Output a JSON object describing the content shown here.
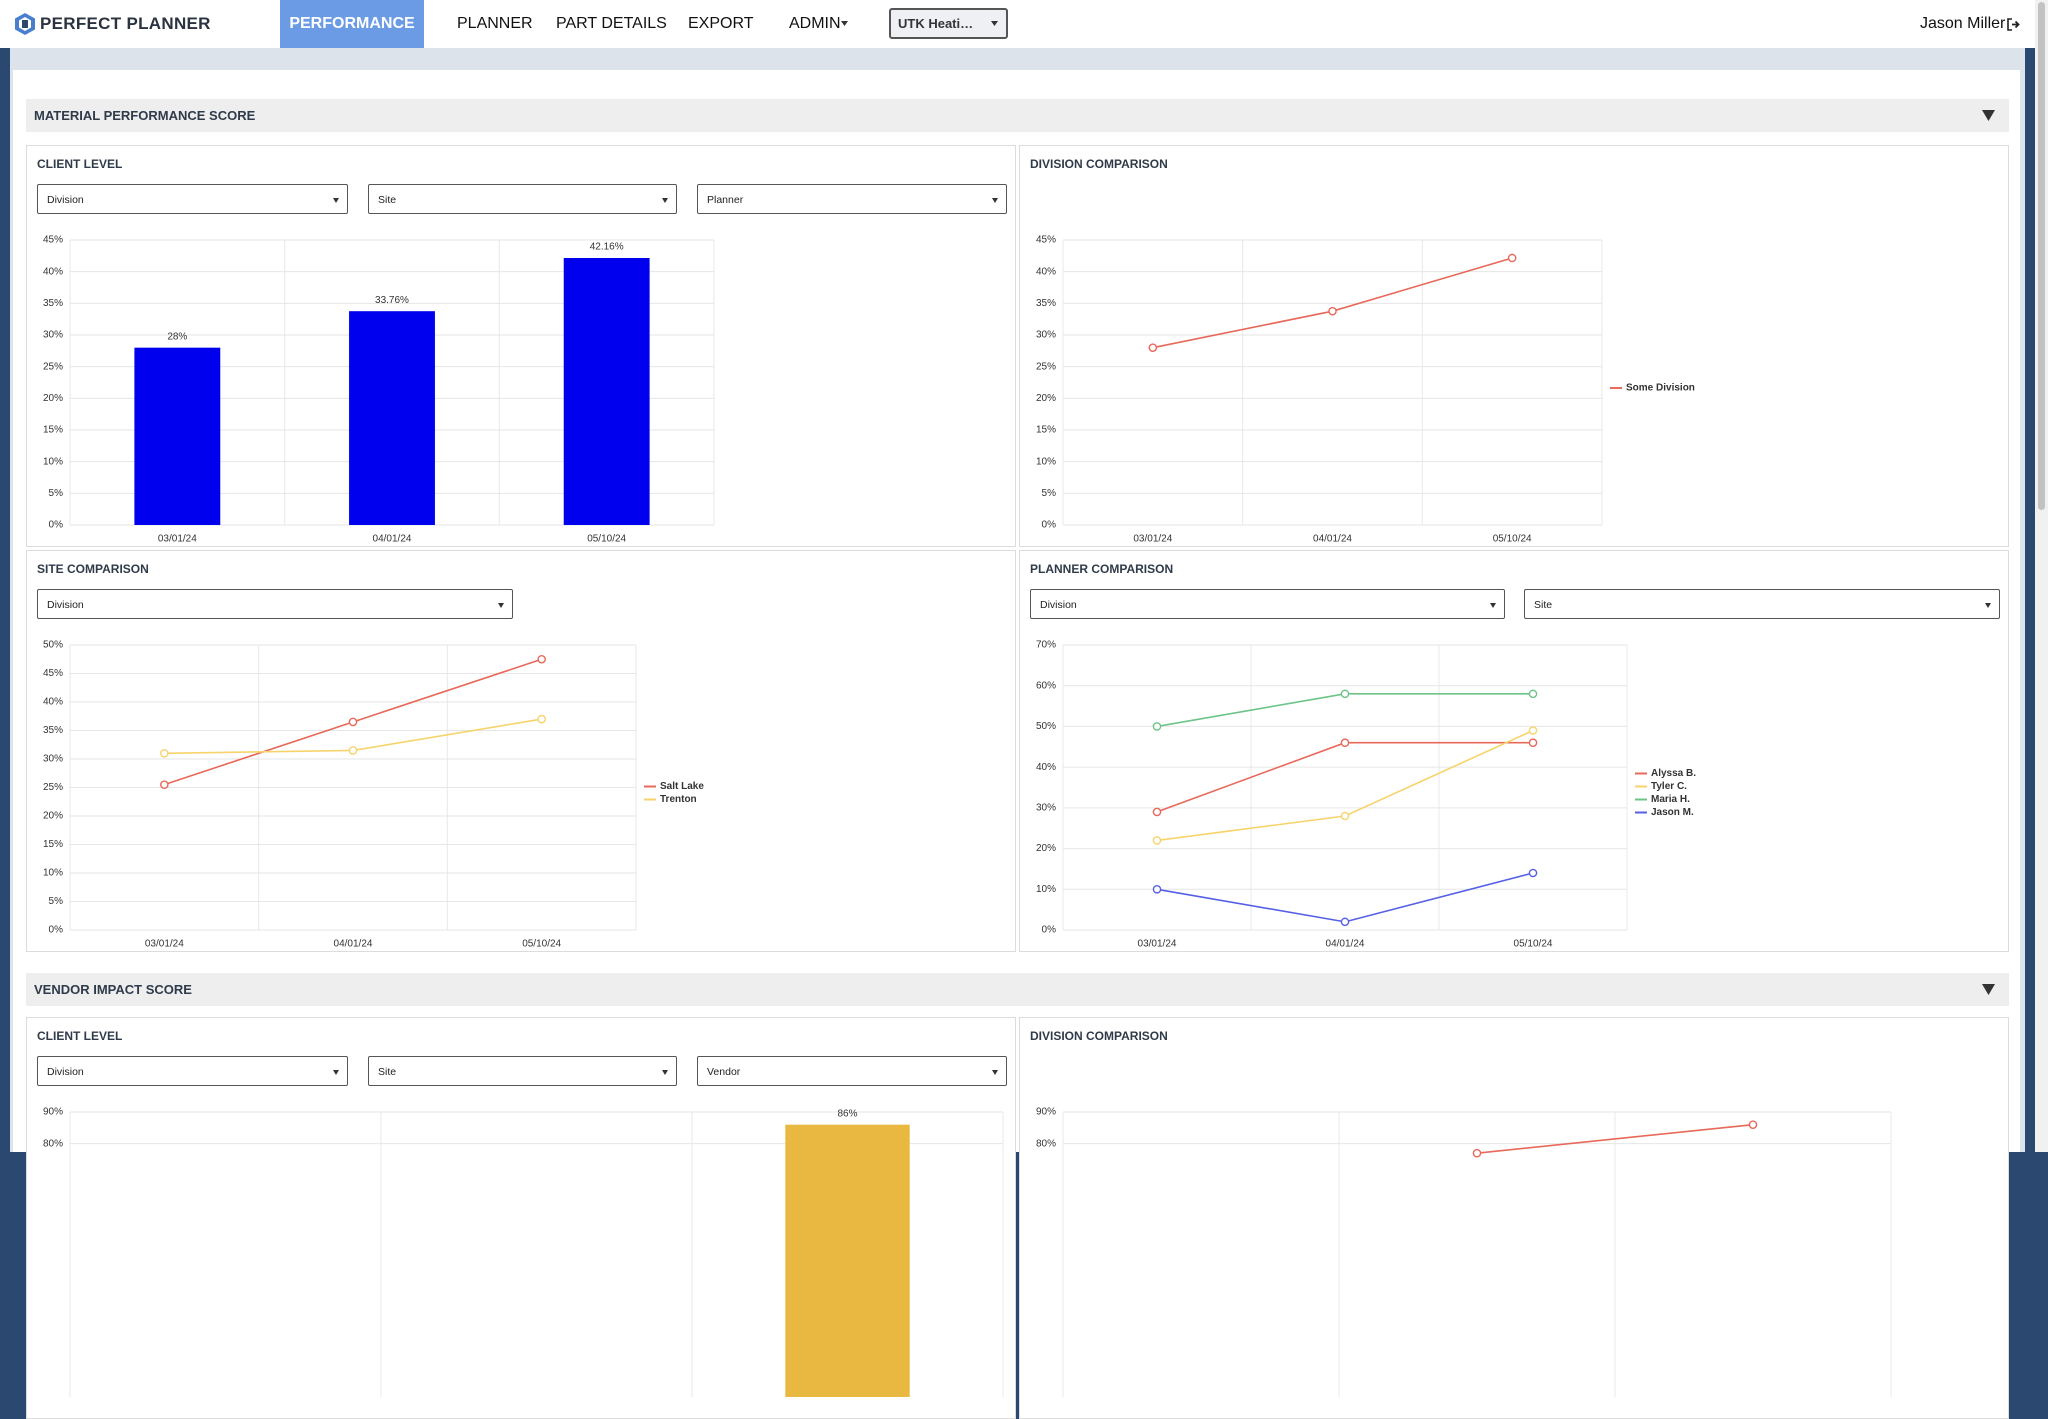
{
  "nav": {
    "brand": "PERFECT PLANNER",
    "items": [
      "PERFORMANCE",
      "PLANNER",
      "PART DETAILS",
      "EXPORT",
      "ADMIN"
    ],
    "client_select": "UTK Heati…",
    "user": "Jason Miller"
  },
  "sections": [
    {
      "title": "MATERIAL PERFORMANCE SCORE",
      "panels": [
        {
          "title": "CLIENT LEVEL",
          "filters": [
            "Division",
            "Site",
            "Planner"
          ],
          "chart": {
            "type": "bar",
            "categories": [
              "03/01/24",
              "04/01/24",
              "05/10/24"
            ],
            "values": [
              28,
              33.76,
              42.16
            ],
            "value_labels": [
              "28%",
              "33.76%",
              "42.16%"
            ],
            "color": "#0000ee",
            "ylim": [
              0,
              45
            ],
            "yticks": [
              {
                "value": 0,
                "label": "0%"
              },
              {
                "value": 5,
                "label": "5%"
              },
              {
                "value": 10,
                "label": "10%"
              },
              {
                "value": 15,
                "label": "15%"
              },
              {
                "value": 20,
                "label": "20%"
              },
              {
                "value": 25,
                "label": "25%"
              },
              {
                "value": 30,
                "label": "30%"
              },
              {
                "value": 35,
                "label": "35%"
              },
              {
                "value": 40,
                "label": "40%"
              },
              {
                "value": 45,
                "label": "45%"
              }
            ],
            "grid": true
          }
        },
        {
          "title": "DIVISION COMPARISON",
          "filters": [],
          "chart": {
            "type": "line",
            "categories": [
              "03/01/24",
              "04/01/24",
              "05/10/24"
            ],
            "series": [
              {
                "name": "Some Division",
                "color": "#e8685a",
                "values": [
                  28,
                  33.76,
                  42.16
                ]
              }
            ],
            "ylim": [
              0,
              45
            ],
            "yticks": [
              {
                "value": 0,
                "label": "0%"
              },
              {
                "value": 5,
                "label": "5%"
              },
              {
                "value": 10,
                "label": "10%"
              },
              {
                "value": 15,
                "label": "15%"
              },
              {
                "value": 20,
                "label": "20%"
              },
              {
                "value": 25,
                "label": "25%"
              },
              {
                "value": 30,
                "label": "30%"
              },
              {
                "value": 35,
                "label": "35%"
              },
              {
                "value": 40,
                "label": "40%"
              },
              {
                "value": 45,
                "label": "45%"
              }
            ],
            "grid": true,
            "legend": "right"
          }
        },
        {
          "title": "SITE COMPARISON",
          "filters": [
            "Division"
          ],
          "chart": {
            "type": "line",
            "categories": [
              "03/01/24",
              "04/01/24",
              "05/10/24"
            ],
            "series": [
              {
                "name": "Salt Lake",
                "color": "#e8685a",
                "values": [
                  25.5,
                  36.5,
                  47.5
                ]
              },
              {
                "name": "Trenton",
                "color": "#f7d36b",
                "values": [
                  31,
                  31.5,
                  37
                ]
              }
            ],
            "ylim": [
              0,
              50
            ],
            "yticks": [
              {
                "value": 0,
                "label": "0%"
              },
              {
                "value": 5,
                "label": "5%"
              },
              {
                "value": 10,
                "label": "10%"
              },
              {
                "value": 15,
                "label": "15%"
              },
              {
                "value": 20,
                "label": "20%"
              },
              {
                "value": 25,
                "label": "25%"
              },
              {
                "value": 30,
                "label": "30%"
              },
              {
                "value": 35,
                "label": "35%"
              },
              {
                "value": 40,
                "label": "40%"
              },
              {
                "value": 45,
                "label": "45%"
              },
              {
                "value": 50,
                "label": "50%"
              }
            ],
            "grid": true,
            "legend": "right"
          }
        },
        {
          "title": "PLANNER COMPARISON",
          "filters": [
            "Division",
            "Site"
          ],
          "chart": {
            "type": "line",
            "categories": [
              "03/01/24",
              "04/01/24",
              "05/10/24"
            ],
            "series": [
              {
                "name": "Alyssa B.",
                "color": "#e8685a",
                "values": [
                  29,
                  46,
                  46
                ]
              },
              {
                "name": "Tyler C.",
                "color": "#f7d36b",
                "values": [
                  22,
                  28,
                  49
                ]
              },
              {
                "name": "Maria H.",
                "color": "#6cc488",
                "values": [
                  50,
                  58,
                  58
                ]
              },
              {
                "name": "Jason M.",
                "color": "#5660e6",
                "values": [
                  10,
                  2,
                  14
                ]
              }
            ],
            "ylim": [
              0,
              70
            ],
            "yticks": [
              {
                "value": 0,
                "label": "0%"
              },
              {
                "value": 10,
                "label": "10%"
              },
              {
                "value": 20,
                "label": "20%"
              },
              {
                "value": 30,
                "label": "30%"
              },
              {
                "value": 40,
                "label": "40%"
              },
              {
                "value": 50,
                "label": "50%"
              },
              {
                "value": 60,
                "label": "60%"
              },
              {
                "value": 70,
                "label": "70%"
              }
            ],
            "grid": true,
            "legend": "right"
          }
        }
      ]
    },
    {
      "title": "VENDOR IMPACT SCORE",
      "panels": [
        {
          "title": "CLIENT LEVEL",
          "filters": [
            "Division",
            "Site",
            "Vendor"
          ],
          "chart": {
            "type": "bar",
            "categories": [
              null,
              null,
              null
            ],
            "values": [
              null,
              null,
              86
            ],
            "value_labels": [
              null,
              null,
              "86%"
            ],
            "color": "#e9b840",
            "ylim": [
              0,
              90
            ],
            "yticks": [
              {
                "value": 80,
                "label": "80%"
              },
              {
                "value": 90,
                "label": "90%"
              }
            ],
            "grid": true
          }
        },
        {
          "title": "DIVISION COMPARISON",
          "filters": [],
          "chart": {
            "type": "line",
            "categories": [
              null,
              null,
              null
            ],
            "series": [
              {
                "color": "#e8685a",
                "values": [
                  null,
                  77,
                  86
                ]
              }
            ],
            "ylim": [
              0,
              90
            ],
            "yticks": [
              {
                "value": 80,
                "label": "80%"
              },
              {
                "value": 90,
                "label": "90%"
              }
            ],
            "grid": true
          }
        }
      ]
    }
  ]
}
